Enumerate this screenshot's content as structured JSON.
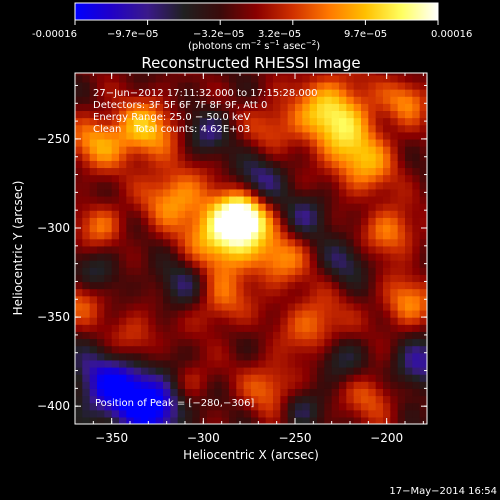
{
  "colorbar": {
    "tick_labels": [
      "-0.00016",
      "−9.7e−05",
      "−3.2e−05",
      "3.2e−05",
      "9.7e−05",
      "0.00016"
    ],
    "range": [
      -0.00016,
      0.00016
    ],
    "unit_main": "(photons cm",
    "unit_sup1": "−2",
    "unit_mid": " s",
    "unit_sup2": "−1",
    "unit_mid2": " asec",
    "unit_sup3": "−2",
    "unit_end": ")",
    "stops": [
      "#0000ff",
      "#2000c8",
      "#3a1a8a",
      "#202020",
      "#3a0a0a",
      "#8a0000",
      "#d03000",
      "#ff7800",
      "#ffc000",
      "#ffff60",
      "#ffffff"
    ]
  },
  "plot": {
    "title": "Reconstructed RHESSI Image",
    "xlabel": "Heliocentric X (arcsec)",
    "ylabel": "Heliocentric Y (arcsec)",
    "xlim": [
      -370,
      -178
    ],
    "ylim": [
      -410,
      -213
    ],
    "x_ticks": [
      -350,
      -300,
      -250,
      -200
    ],
    "y_ticks": [
      -250,
      -300,
      -350,
      -400
    ],
    "x_tick_labels": [
      "−350",
      "−300",
      "−250",
      "−200"
    ],
    "y_tick_labels": [
      "−250",
      "−300",
      "−350",
      "−400"
    ]
  },
  "info_lines": [
    "27−Jun−2012 17:11:32.000 to 17:15:28.000",
    "Detectors: 3F 5F 6F 7F 8F 9F, Att 0",
    "Energy Range: 25.0 − 50.0 keV",
    "Clean    Total counts: 4.62E+03"
  ],
  "peak_label": "Position of Peak = [−280,−306]",
  "footer_date": "17−May−2014 16:54",
  "image_blobs": [
    {
      "x": -287,
      "y": -303,
      "r": 14,
      "v": 1.0
    },
    {
      "x": -278,
      "y": -293,
      "r": 9,
      "v": 0.85
    },
    {
      "x": -229,
      "y": -236,
      "r": 15,
      "v": 0.85
    },
    {
      "x": -332,
      "y": -245,
      "r": 12,
      "v": 0.7
    },
    {
      "x": -316,
      "y": -282,
      "r": 12,
      "v": 0.6
    },
    {
      "x": -358,
      "y": -252,
      "r": 11,
      "v": 0.55
    },
    {
      "x": -338,
      "y": -365,
      "r": 12,
      "v": 0.55
    },
    {
      "x": -356,
      "y": -298,
      "r": 9,
      "v": 0.45
    },
    {
      "x": -291,
      "y": -341,
      "r": 11,
      "v": 0.45
    },
    {
      "x": -258,
      "y": -318,
      "r": 11,
      "v": 0.5
    },
    {
      "x": -213,
      "y": -263,
      "r": 13,
      "v": 0.6
    },
    {
      "x": -198,
      "y": -302,
      "r": 10,
      "v": 0.55
    },
    {
      "x": -189,
      "y": -342,
      "r": 10,
      "v": 0.55
    },
    {
      "x": -239,
      "y": -354,
      "r": 12,
      "v": 0.5
    },
    {
      "x": -263,
      "y": -389,
      "r": 11,
      "v": 0.45
    },
    {
      "x": -208,
      "y": -394,
      "r": 10,
      "v": 0.4
    },
    {
      "x": -366,
      "y": -340,
      "r": 10,
      "v": 0.4
    },
    {
      "x": -307,
      "y": -385,
      "r": 8,
      "v": 0.3
    },
    {
      "x": -188,
      "y": -228,
      "r": 9,
      "v": 0.5
    },
    {
      "x": -263,
      "y": -242,
      "r": 10,
      "v": 0.35
    },
    {
      "x": -346,
      "y": -387,
      "r": 16,
      "v": -0.95
    },
    {
      "x": -326,
      "y": -401,
      "r": 11,
      "v": -0.7
    },
    {
      "x": -311,
      "y": -332,
      "r": 10,
      "v": -0.4
    },
    {
      "x": -268,
      "y": -272,
      "r": 10,
      "v": -0.45
    },
    {
      "x": -243,
      "y": -292,
      "r": 9,
      "v": -0.4
    },
    {
      "x": -183,
      "y": -377,
      "r": 10,
      "v": -0.55
    },
    {
      "x": -227,
      "y": -374,
      "r": 9,
      "v": -0.35
    },
    {
      "x": -358,
      "y": -325,
      "r": 9,
      "v": -0.35
    },
    {
      "x": -298,
      "y": -246,
      "r": 9,
      "v": -0.4
    },
    {
      "x": -223,
      "y": -318,
      "r": 9,
      "v": -0.35
    },
    {
      "x": -248,
      "y": -402,
      "r": 8,
      "v": -0.35
    }
  ]
}
